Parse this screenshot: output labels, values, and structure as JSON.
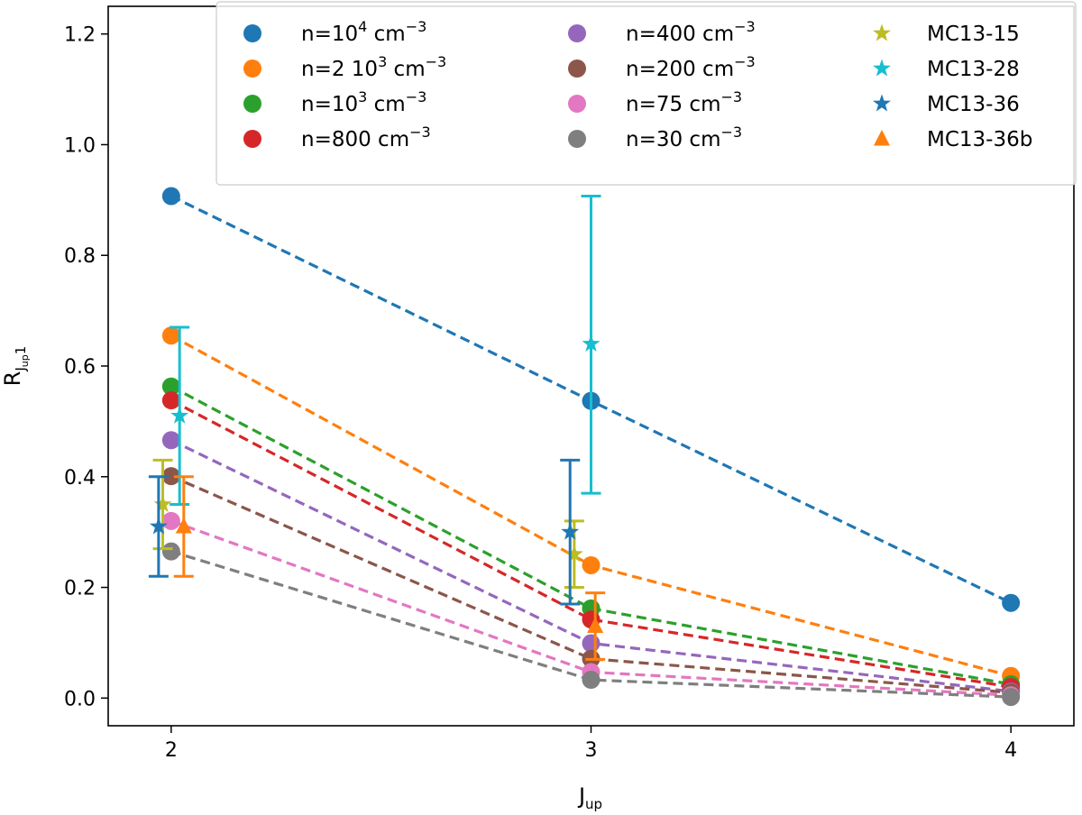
{
  "chart_data": {
    "type": "line",
    "xlabel": "J",
    "xlabel_sub": "up",
    "ylabel": "R",
    "ylabel_sub": "J",
    "ylabel_subsub": "up",
    "ylabel_tail": "1",
    "xlim": [
      1.85,
      4.15
    ],
    "ylim": [
      -0.05,
      1.25
    ],
    "xticks": [
      2,
      3,
      4
    ],
    "xtick_labels": [
      "2",
      "3",
      "4"
    ],
    "yticks": [
      0.0,
      0.2,
      0.4,
      0.6,
      0.8,
      1.0,
      1.2
    ],
    "ytick_labels": [
      "0.0",
      "0.2",
      "0.4",
      "0.6",
      "0.8",
      "1.0",
      "1.2"
    ],
    "legend_position": "top-right",
    "grid": false,
    "model_series": [
      {
        "name": "n=10⁴ cm⁻³",
        "label_pre": "n=10",
        "label_sup": "4",
        "label_post": " cm",
        "label_sup2": "−3",
        "color": "#1f77b4",
        "x": [
          2,
          3,
          4
        ],
        "y": [
          0.907,
          0.537,
          0.172
        ]
      },
      {
        "name": "n=2 10³ cm⁻³",
        "label_pre": "n=2 10",
        "label_sup": "3",
        "label_post": " cm",
        "label_sup2": "−3",
        "color": "#ff7f0e",
        "x": [
          2,
          3,
          4
        ],
        "y": [
          0.655,
          0.24,
          0.04
        ]
      },
      {
        "name": "n=10³ cm⁻³",
        "label_pre": "n=10",
        "label_sup": "3",
        "label_post": " cm",
        "label_sup2": "−3",
        "color": "#2ca02c",
        "x": [
          2,
          3,
          4
        ],
        "y": [
          0.563,
          0.162,
          0.025
        ]
      },
      {
        "name": "n=800 cm⁻³",
        "label_pre": "n=800",
        "label_sup": "",
        "label_post": " cm",
        "label_sup2": "−3",
        "color": "#d62728",
        "x": [
          2,
          3,
          4
        ],
        "y": [
          0.538,
          0.142,
          0.02
        ]
      },
      {
        "name": "n=400 cm⁻³",
        "label_pre": "n=400",
        "label_sup": "",
        "label_post": " cm",
        "label_sup2": "−3",
        "color": "#9467bd",
        "x": [
          2,
          3,
          4
        ],
        "y": [
          0.466,
          0.099,
          0.012
        ]
      },
      {
        "name": "n=200 cm⁻³",
        "label_pre": "n=200",
        "label_sup": "",
        "label_post": " cm",
        "label_sup2": "−3",
        "color": "#8c564b",
        "x": [
          2,
          3,
          4
        ],
        "y": [
          0.401,
          0.071,
          0.01
        ]
      },
      {
        "name": "n=75 cm⁻³",
        "label_pre": "n=75",
        "label_sup": "",
        "label_post": " cm",
        "label_sup2": "−3",
        "color": "#e377c2",
        "x": [
          2,
          3,
          4
        ],
        "y": [
          0.32,
          0.047,
          0.005
        ]
      },
      {
        "name": "n=30 cm⁻³",
        "label_pre": "n=30",
        "label_sup": "",
        "label_post": " cm",
        "label_sup2": "−3",
        "color": "#7f7f7f",
        "x": [
          2,
          3,
          4
        ],
        "y": [
          0.265,
          0.033,
          0.002
        ]
      }
    ],
    "observed_series": [
      {
        "name": "MC13-15",
        "marker": "star",
        "color": "#bcbd22",
        "points": [
          {
            "x": 1.98,
            "y": 0.35,
            "err_low": 0.27,
            "err_high": 0.43
          },
          {
            "x": 2.96,
            "y": 0.26,
            "err_low": 0.2,
            "err_high": 0.32
          }
        ]
      },
      {
        "name": "MC13-28",
        "marker": "star",
        "color": "#17becf",
        "points": [
          {
            "x": 2.02,
            "y": 0.51,
            "err_low": 0.35,
            "err_high": 0.67
          },
          {
            "x": 3.0,
            "y": 0.64,
            "err_low": 0.37,
            "err_high": 0.907
          }
        ]
      },
      {
        "name": "MC13-36",
        "marker": "star",
        "color": "#1f77b4",
        "points": [
          {
            "x": 1.97,
            "y": 0.31,
            "err_low": 0.22,
            "err_high": 0.4
          },
          {
            "x": 2.95,
            "y": 0.3,
            "err_low": 0.17,
            "err_high": 0.43
          }
        ]
      },
      {
        "name": "MC13-36b",
        "marker": "triangle",
        "color": "#ff7f0e",
        "points": [
          {
            "x": 2.03,
            "y": 0.31,
            "err_low": 0.22,
            "err_high": 0.4
          },
          {
            "x": 3.01,
            "y": 0.13,
            "err_low": 0.07,
            "err_high": 0.19
          }
        ]
      }
    ]
  }
}
